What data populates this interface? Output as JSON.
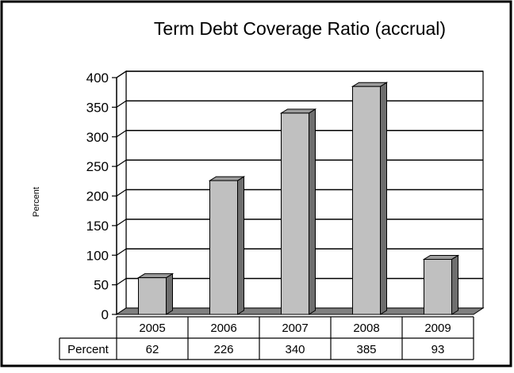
{
  "chart_data": {
    "type": "bar",
    "title": "Term Debt Coverage Ratio (accrual)",
    "ylabel": "Percent",
    "xlabel": "",
    "categories": [
      "2005",
      "2006",
      "2007",
      "2008",
      "2009"
    ],
    "series": [
      {
        "name": "Percent",
        "values": [
          62,
          226,
          340,
          385,
          93
        ]
      }
    ],
    "ylim": [
      0,
      400
    ],
    "yticks": [
      0,
      50,
      100,
      150,
      200,
      250,
      300,
      350,
      400
    ],
    "grid": true,
    "bar_style": "3d",
    "colors": {
      "bar_front": "#c0c0c0",
      "bar_side": "#6e6e6e",
      "bar_top": "#9c9c9c",
      "floor": "#7f7f7f",
      "wall": "#ffffff"
    },
    "data_table": {
      "row_label": "Percent",
      "values": [
        "62",
        "226",
        "340",
        "385",
        "93"
      ]
    }
  }
}
